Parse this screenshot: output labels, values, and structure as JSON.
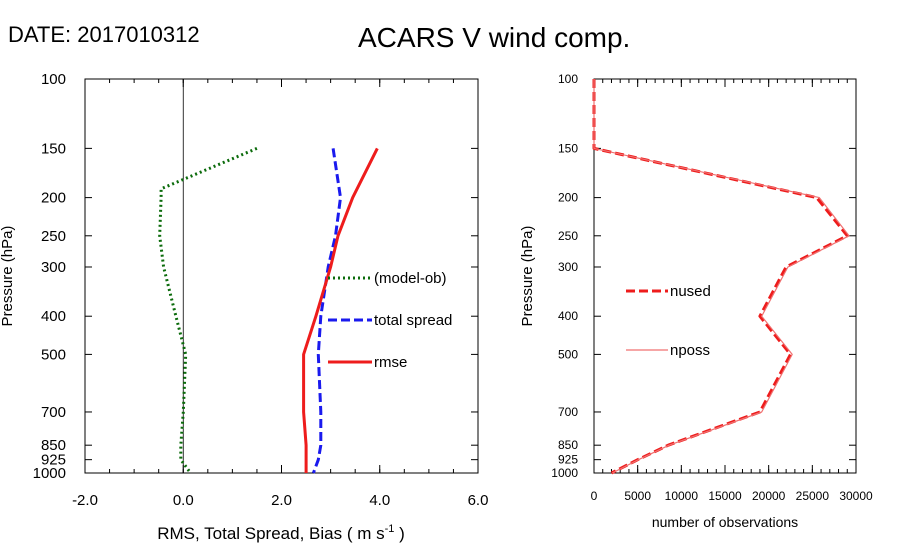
{
  "header": {
    "date_label": "DATE: 2017010312",
    "title": "ACARS V wind comp."
  },
  "colors": {
    "bias": "#0b6b0b",
    "spread": "#1a1aee",
    "rmse": "#ee1c1c",
    "nused": "#ee1c1c",
    "nposs": "#f07070",
    "axis": "#000000"
  },
  "chart_data": [
    {
      "type": "line",
      "panel": "left",
      "xlabel": "RMS, Total Spread, Bias ( m s",
      "xlabel_sup": "-1",
      "xlabel_suffix": " )",
      "ylabel": "Pressure (hPa)",
      "xlim": [
        -2.0,
        6.0
      ],
      "ylim": [
        1000,
        100
      ],
      "y_scale": "log",
      "x_tick_labels": [
        "-2.0",
        "0.0",
        "2.0",
        "4.0",
        "6.0"
      ],
      "y_tick_labels": [
        "100",
        "150",
        "200",
        "250",
        "300",
        "400",
        "500",
        "700",
        "850",
        "925",
        "1000"
      ],
      "zero_line": true,
      "legend_position": "right-middle",
      "series": [
        {
          "name": "(model-ob)",
          "style": "dotted",
          "color_key": "bias",
          "points": [
            [
              1.5,
              150
            ],
            [
              -0.45,
              190
            ],
            [
              -0.45,
              200
            ],
            [
              -0.48,
              250
            ],
            [
              -0.4,
              300
            ],
            [
              -0.15,
              400
            ],
            [
              0.05,
              500
            ],
            [
              0.0,
              700
            ],
            [
              -0.05,
              850
            ],
            [
              -0.05,
              925
            ],
            [
              0.15,
              1000
            ]
          ]
        },
        {
          "name": "total spread",
          "style": "dashed",
          "color_key": "spread",
          "points": [
            [
              3.05,
              150
            ],
            [
              3.2,
              200
            ],
            [
              3.1,
              250
            ],
            [
              2.95,
              300
            ],
            [
              2.8,
              400
            ],
            [
              2.75,
              500
            ],
            [
              2.8,
              700
            ],
            [
              2.8,
              850
            ],
            [
              2.75,
              925
            ],
            [
              2.65,
              1000
            ]
          ]
        },
        {
          "name": "rmse",
          "style": "solid",
          "color_key": "rmse",
          "points": [
            [
              3.95,
              150
            ],
            [
              3.45,
              200
            ],
            [
              3.15,
              250
            ],
            [
              3.0,
              300
            ],
            [
              2.7,
              400
            ],
            [
              2.45,
              500
            ],
            [
              2.45,
              700
            ],
            [
              2.5,
              850
            ],
            [
              2.5,
              925
            ],
            [
              2.5,
              1000
            ]
          ]
        }
      ]
    },
    {
      "type": "line",
      "panel": "right",
      "xlabel": "number of observations",
      "ylabel": "Pressure (hPa)",
      "xlim": [
        0,
        30000
      ],
      "ylim": [
        1000,
        100
      ],
      "y_scale": "log",
      "x_tick_labels": [
        "0",
        "5000",
        "10000",
        "15000",
        "20000",
        "25000",
        "30000"
      ],
      "y_tick_labels": [
        "100",
        "150",
        "200",
        "250",
        "300",
        "400",
        "500",
        "700",
        "850",
        "925",
        "1000"
      ],
      "legend_position": "left-middle",
      "series": [
        {
          "name": "nused",
          "style": "dashed",
          "color_key": "nused",
          "points": [
            [
              0,
              100
            ],
            [
              0,
              150
            ],
            [
              25500,
              200
            ],
            [
              29000,
              250
            ],
            [
              22000,
              300
            ],
            [
              19000,
              400
            ],
            [
              22500,
              500
            ],
            [
              19000,
              700
            ],
            [
              8500,
              850
            ],
            [
              5000,
              925
            ],
            [
              2000,
              1000
            ]
          ]
        },
        {
          "name": "nposs",
          "style": "solid",
          "color_key": "nposs",
          "points": [
            [
              0,
              100
            ],
            [
              0,
              150
            ],
            [
              25800,
              200
            ],
            [
              29200,
              250
            ],
            [
              22200,
              300
            ],
            [
              19200,
              400
            ],
            [
              22700,
              500
            ],
            [
              19200,
              700
            ],
            [
              8600,
              850
            ],
            [
              5100,
              925
            ],
            [
              2100,
              1000
            ]
          ]
        }
      ]
    }
  ]
}
